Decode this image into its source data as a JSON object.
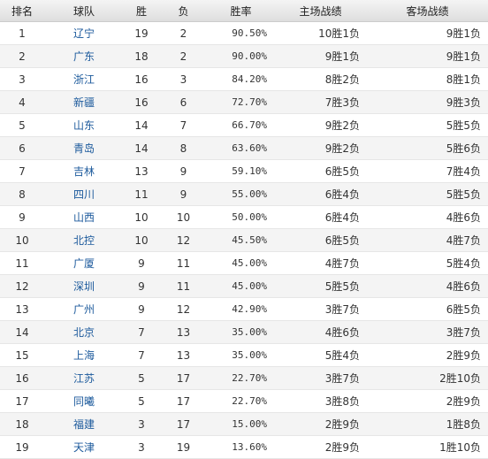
{
  "table": {
    "header": [
      "排名",
      "球队",
      "胜",
      "负",
      "胜率",
      "主场战绩",
      "客场战绩"
    ],
    "rows": [
      [
        1,
        "辽宁",
        19,
        2,
        "90.50%",
        "10胜1负",
        "9胜1负"
      ],
      [
        2,
        "广东",
        18,
        2,
        "90.00%",
        "9胜1负",
        "9胜1负"
      ],
      [
        3,
        "浙江",
        16,
        3,
        "84.20%",
        "8胜2负",
        "8胜1负"
      ],
      [
        4,
        "新疆",
        16,
        6,
        "72.70%",
        "7胜3负",
        "9胜3负"
      ],
      [
        5,
        "山东",
        14,
        7,
        "66.70%",
        "9胜2负",
        "5胜5负"
      ],
      [
        6,
        "青岛",
        14,
        8,
        "63.60%",
        "9胜2负",
        "5胜6负"
      ],
      [
        7,
        "吉林",
        13,
        9,
        "59.10%",
        "6胜5负",
        "7胜4负"
      ],
      [
        8,
        "四川",
        11,
        9,
        "55.00%",
        "6胜4负",
        "5胜5负"
      ],
      [
        9,
        "山西",
        10,
        10,
        "50.00%",
        "6胜4负",
        "4胜6负"
      ],
      [
        10,
        "北控",
        10,
        12,
        "45.50%",
        "6胜5负",
        "4胜7负"
      ],
      [
        11,
        "广厦",
        9,
        11,
        "45.00%",
        "4胜7负",
        "5胜4负"
      ],
      [
        12,
        "深圳",
        9,
        11,
        "45.00%",
        "5胜5负",
        "4胜6负"
      ],
      [
        13,
        "广州",
        9,
        12,
        "42.90%",
        "3胜7负",
        "6胜5负"
      ],
      [
        14,
        "北京",
        7,
        13,
        "35.00%",
        "4胜6负",
        "3胜7负"
      ],
      [
        15,
        "上海",
        7,
        13,
        "35.00%",
        "5胜4负",
        "2胜9负"
      ],
      [
        16,
        "江苏",
        5,
        17,
        "22.70%",
        "3胜7负",
        "2胜10负"
      ],
      [
        17,
        "同曦",
        5,
        17,
        "22.70%",
        "3胜8负",
        "2胜9负"
      ],
      [
        18,
        "福建",
        3,
        17,
        "15.00%",
        "2胜9负",
        "1胜8负"
      ],
      [
        19,
        "天津",
        3,
        19,
        "13.60%",
        "2胜9负",
        "1胜10负"
      ]
    ]
  }
}
